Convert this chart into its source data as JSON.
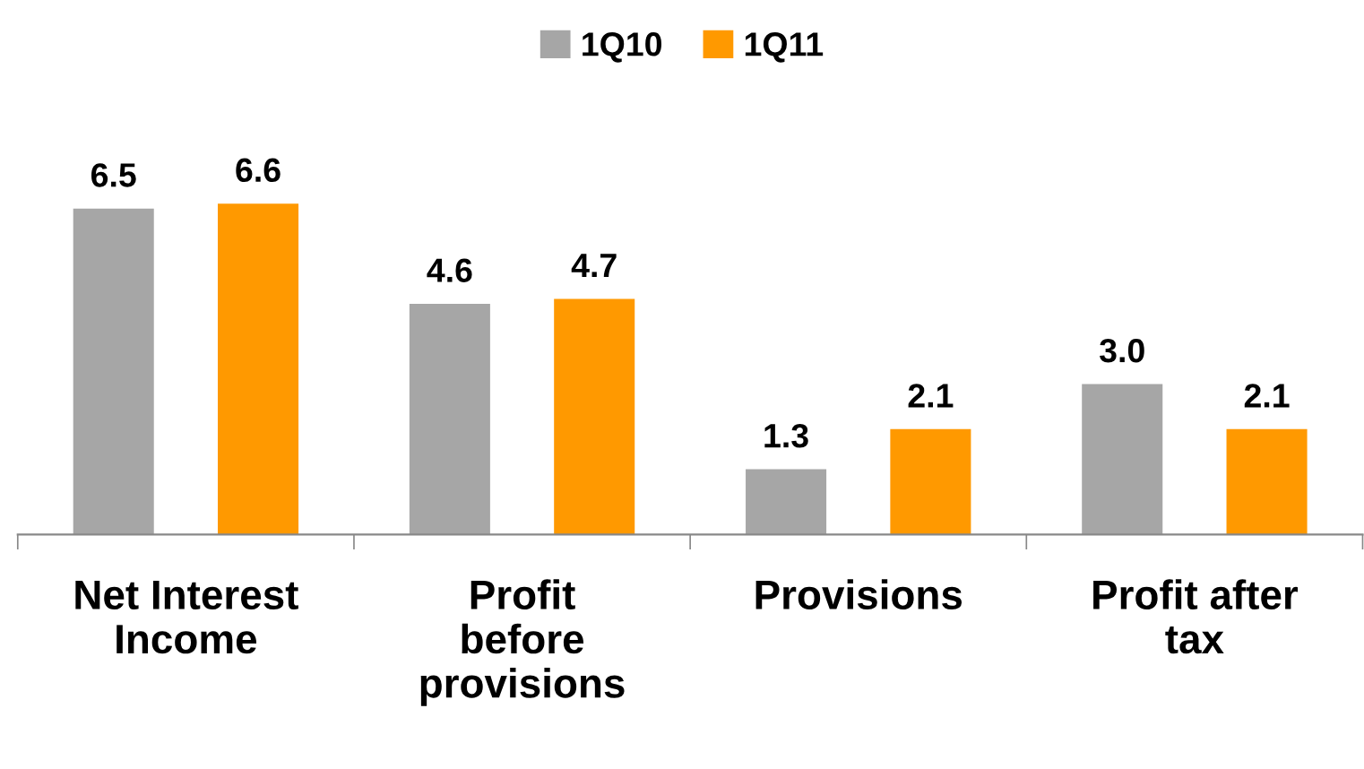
{
  "chart_data": {
    "type": "bar",
    "categories": [
      "Net Interest\nIncome",
      "Profit\nbefore\nprovisions",
      "Provisions",
      "Profit after\ntax"
    ],
    "series": [
      {
        "name": "1Q10",
        "color": "#a6a6a6",
        "values": [
          6.5,
          4.6,
          1.3,
          3.0
        ],
        "value_labels": [
          "6.5",
          "4.6",
          "1.3",
          "3.0"
        ]
      },
      {
        "name": "1Q11",
        "color": "#ff9900",
        "values": [
          6.6,
          4.7,
          2.1,
          2.1
        ],
        "value_labels": [
          "6.6",
          "4.7",
          "2.1",
          "2.1"
        ]
      }
    ],
    "legend": "top",
    "grid": false
  }
}
